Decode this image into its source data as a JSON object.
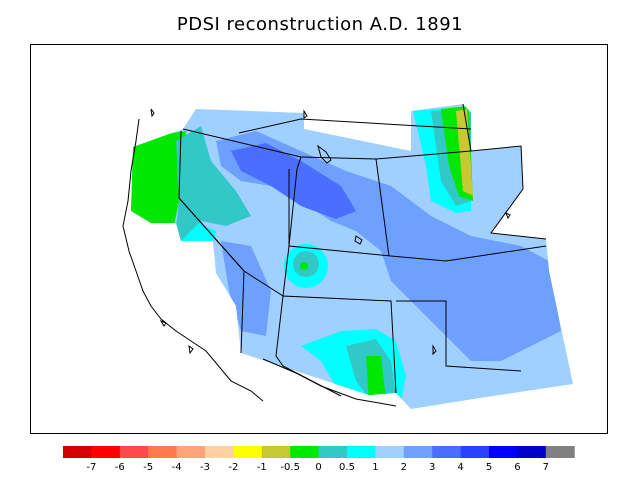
{
  "title": "PDSI reconstruction A.D. 1891",
  "legend": {
    "labels": [
      "-7",
      "-6",
      "-5",
      "-4",
      "-3",
      "-2",
      "-1",
      "-0.5",
      "0",
      "0.5",
      "1",
      "2",
      "3",
      "4",
      "5",
      "6",
      "7"
    ],
    "colors": [
      "#d40000",
      "#ff0000",
      "#ff4a4a",
      "#ff7a4a",
      "#ffa37a",
      "#ffd0a0",
      "#ffff00",
      "#c8c832",
      "#00e800",
      "#32c8c8",
      "#00ffff",
      "#a0d0ff",
      "#6ea0ff",
      "#4a6eff",
      "#2842ff",
      "#0000ff",
      "#0000c8",
      "#808080"
    ]
  },
  "map": {
    "region": "western-united-states",
    "colors": {
      "lightblue": "#a0d0ff",
      "blue": "#6ea0ff",
      "deepblue": "#4a6eff",
      "cyan": "#00ffff",
      "teal": "#32c8c8",
      "green": "#00e800",
      "olive": "#c8c832",
      "coastline": "#000000",
      "border": "#000000"
    }
  }
}
